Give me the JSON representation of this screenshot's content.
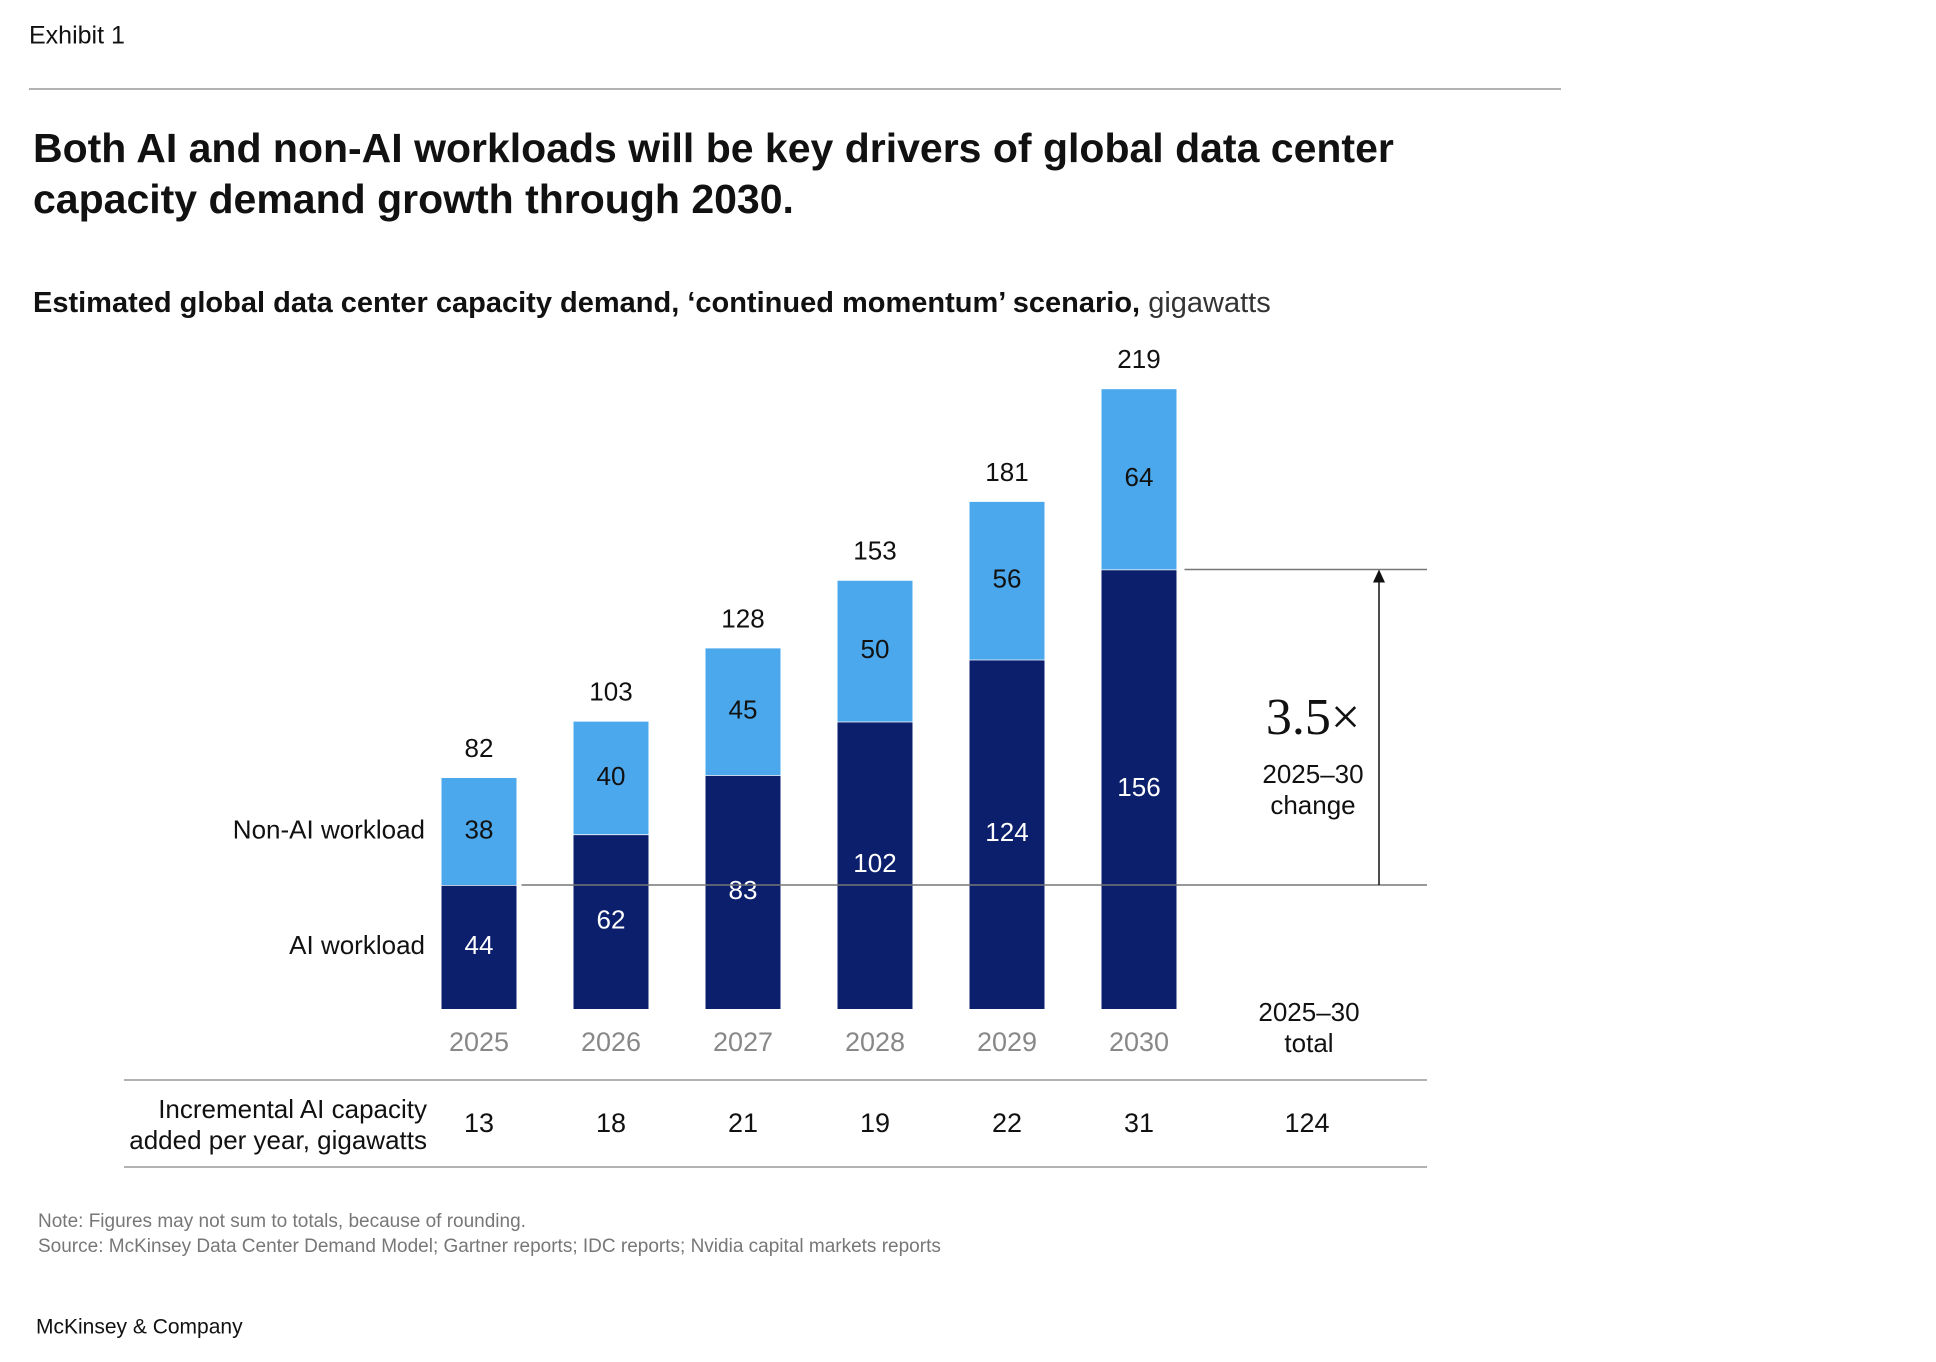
{
  "exhibit": "Exhibit 1",
  "chart_data": {
    "type": "bar",
    "stacked": true,
    "title": [
      "Both AI and non-AI workloads will be key drivers of global data center",
      "capacity demand growth through 2030."
    ],
    "subtitle": "Estimated global data center capacity demand, ‘continued momentum’ scenario,",
    "subtitle_unit": "gigawatts",
    "categories": [
      "2025",
      "2026",
      "2027",
      "2028",
      "2029",
      "2030"
    ],
    "series": [
      {
        "name": "AI workload",
        "color": "#0c1f6c",
        "label_color": "#ffffff",
        "values": [
          44,
          62,
          83,
          102,
          124,
          156
        ]
      },
      {
        "name": "Non-AI workload",
        "color": "#4ca8ec",
        "label_color": "#111111",
        "values": [
          38,
          40,
          45,
          50,
          56,
          64
        ]
      }
    ],
    "totals": [
      82,
      103,
      128,
      153,
      181,
      219
    ],
    "annotation": {
      "label": "3.5×",
      "sublabel": [
        "2025–30",
        "change"
      ]
    },
    "incremental": {
      "label": [
        "Incremental AI capacity",
        "added per year, gigawatts"
      ],
      "values": [
        13,
        18,
        21,
        19,
        22,
        31
      ],
      "total_label": [
        "2025–30",
        "total"
      ],
      "total": 124
    }
  },
  "note": "Note: Figures may not sum to totals, because of rounding.",
  "source": "Source: McKinsey Data Center Demand Model; Gartner reports; IDC reports; Nvidia capital markets reports",
  "brand": "McKinsey & Company"
}
